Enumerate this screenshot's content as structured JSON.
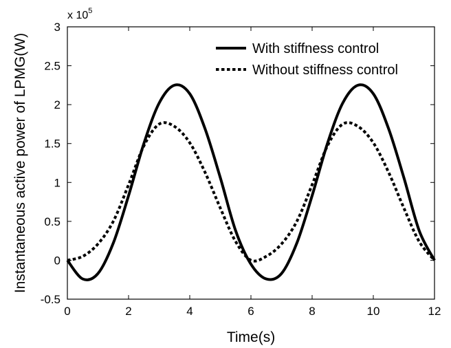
{
  "chart_data": {
    "type": "line",
    "title": "",
    "xlabel": "Time(s)",
    "ylabel": "Instantaneous active power of LPMG(W)",
    "y_multiplier": {
      "base": "x 10",
      "exponent": "5"
    },
    "xlim": [
      0,
      12
    ],
    "ylim": [
      -0.5,
      3
    ],
    "x_ticks": [
      "0",
      "2",
      "4",
      "6",
      "8",
      "10",
      "12"
    ],
    "y_ticks": [
      "-0.5",
      "0",
      "0.5",
      "1",
      "1.5",
      "2",
      "2.5",
      "3"
    ],
    "grid": false,
    "legend_position": "top-right",
    "x": [
      0,
      0.5,
      1,
      1.5,
      2,
      2.5,
      3,
      3.5,
      4,
      4.5,
      5,
      5.5,
      6,
      6.5,
      7,
      7.5,
      8,
      8.5,
      9,
      9.5,
      10,
      10.5,
      11,
      11.5,
      12
    ],
    "series": [
      {
        "name": "With stiffness control",
        "style": "solid",
        "color": "#000000",
        "values": [
          0.0,
          -0.24,
          -0.17,
          0.22,
          0.83,
          1.5,
          2.02,
          2.25,
          2.14,
          1.69,
          1.06,
          0.38,
          -0.05,
          -0.24,
          -0.17,
          0.22,
          0.83,
          1.5,
          2.02,
          2.25,
          2.14,
          1.69,
          1.06,
          0.38,
          0.0
        ]
      },
      {
        "name": "Without stiffness control",
        "style": "dashed",
        "color": "#000000",
        "values": [
          0.0,
          0.05,
          0.21,
          0.5,
          0.97,
          1.47,
          1.75,
          1.72,
          1.51,
          1.13,
          0.67,
          0.24,
          0.0,
          0.05,
          0.21,
          0.5,
          0.97,
          1.47,
          1.75,
          1.72,
          1.51,
          1.13,
          0.67,
          0.24,
          0.0
        ]
      }
    ]
  }
}
